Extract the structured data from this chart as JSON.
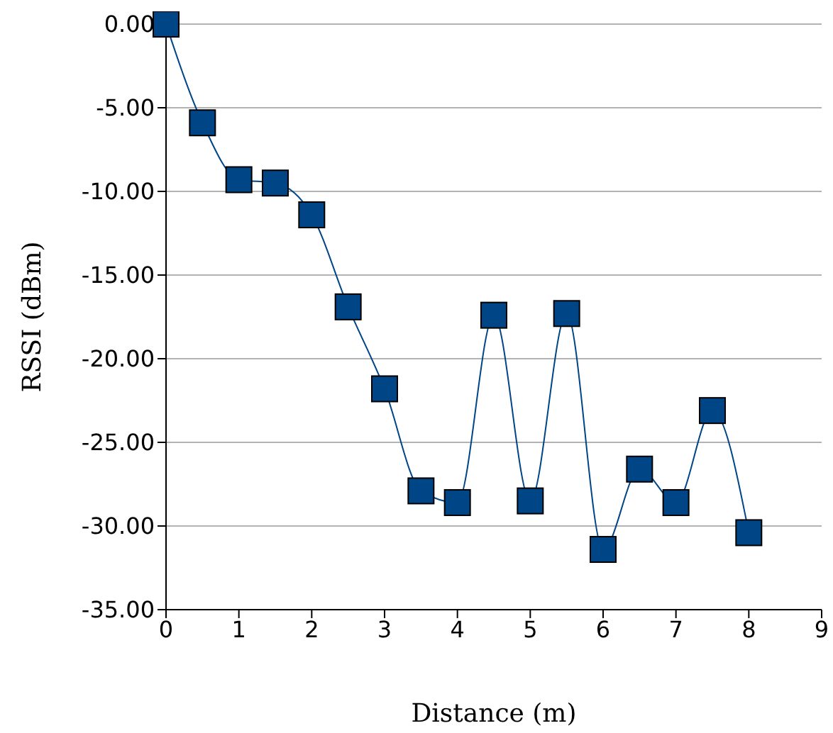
{
  "chart_data": {
    "type": "line",
    "xlabel": "Distance (m)",
    "ylabel": "RSSI (dBm)",
    "x": [
      0,
      0.5,
      1,
      1.5,
      2,
      2.5,
      3,
      3.5,
      4,
      4.5,
      5,
      5.5,
      6,
      6.5,
      7,
      7.5,
      8
    ],
    "series": [
      {
        "color": "#004586",
        "values": [
          0,
          -5.9,
          -9.3,
          -9.5,
          -11.4,
          -16.9,
          -21.8,
          -27.9,
          -28.6,
          -17.4,
          -28.5,
          -17.3,
          -31.4,
          -26.6,
          -28.6,
          -23.1,
          -30.4
        ]
      }
    ],
    "xlim": [
      0,
      9
    ],
    "xticks": [
      0,
      1,
      2,
      3,
      4,
      5,
      6,
      7,
      8,
      9
    ],
    "ylim": [
      -35,
      0
    ],
    "yticks": [
      {
        "value": -35,
        "label": "-35.00"
      },
      {
        "value": -30,
        "label": "-30.00"
      },
      {
        "value": -25,
        "label": "-25.00"
      },
      {
        "value": -20,
        "label": "-20.00"
      },
      {
        "value": -15,
        "label": "-15.00"
      },
      {
        "value": -10,
        "label": "-10.00"
      },
      {
        "value": -5,
        "label": "-5.00"
      },
      {
        "value": 0,
        "label": "0.00"
      }
    ],
    "grid": "y",
    "marker": "square",
    "line_style": "solid"
  }
}
